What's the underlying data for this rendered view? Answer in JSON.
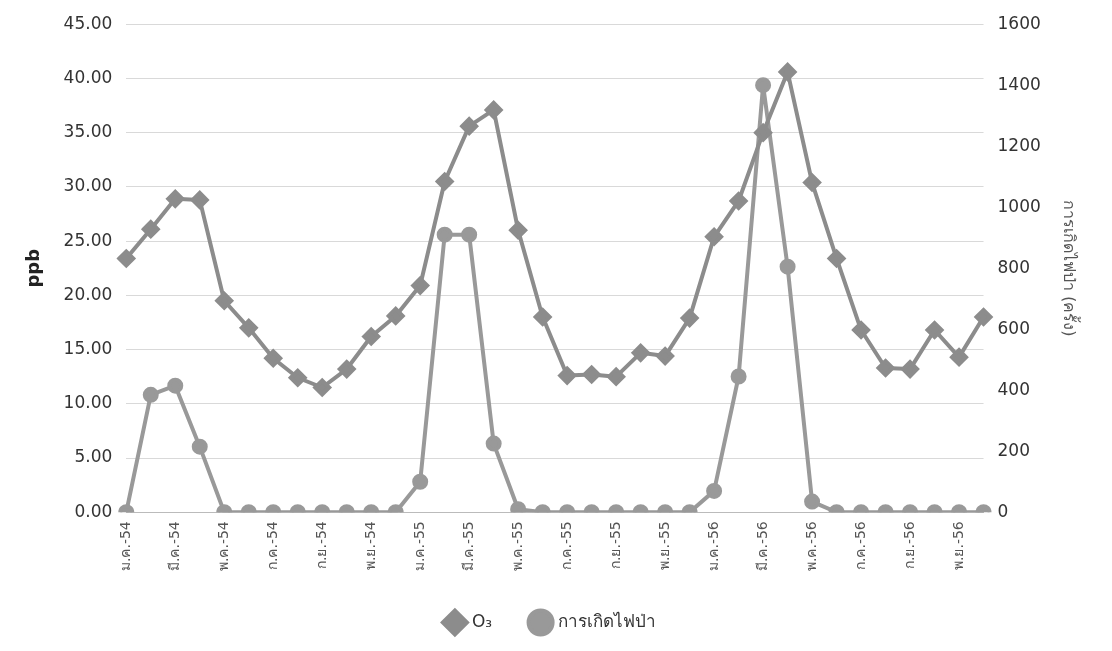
{
  "chart_data": {
    "type": "line",
    "ylabel": "ppb",
    "y2label": "การเกิดไฟป่า (ครั้ง)",
    "categories": [
      "ม.ค.-54",
      null,
      "มี.ค.-54",
      null,
      "พ.ค.-54",
      null,
      "ก.ค.-54",
      null,
      "ก.ย.-54",
      null,
      "พ.ย.-54",
      null,
      "ม.ค.-55",
      null,
      "มี.ค.-55",
      null,
      "พ.ค.-55",
      null,
      "ก.ค.-55",
      null,
      "ก.ย.-55",
      null,
      "พ.ย.-55",
      null,
      "ม.ค.-56",
      null,
      "มี.ค.-56",
      null,
      "พ.ค.-56",
      null,
      "ก.ค.-56",
      null,
      "ก.ย.-56",
      null,
      "พ.ย.-56",
      null
    ],
    "series": [
      {
        "name": "O₃",
        "color": "#8c8c8c",
        "marker": "diamond",
        "values": [
          23.4,
          26.1,
          28.9,
          28.8,
          19.5,
          17.0,
          14.2,
          12.4,
          11.5,
          13.2,
          16.2,
          18.1,
          20.9,
          30.5,
          35.6,
          37.1,
          26.0,
          18.0,
          12.6,
          12.7,
          12.5,
          14.7,
          14.4,
          17.9,
          25.4,
          28.7,
          35.0,
          40.6,
          30.4,
          23.4,
          16.8,
          13.3,
          13.2,
          16.8,
          14.3,
          18.0
        ]
      },
      {
        "name": "การเกิดไฟป่า",
        "color": "#999999",
        "marker": "circle",
        "axis": "y2",
        "values": [
          0,
          385,
          415,
          215,
          0,
          0,
          0,
          0,
          0,
          0,
          0,
          0,
          100,
          910,
          910,
          225,
          10,
          0,
          0,
          0,
          0,
          0,
          0,
          0,
          70,
          445,
          1400,
          805,
          35,
          0,
          0,
          0,
          0,
          0,
          0,
          0
        ]
      }
    ],
    "ylim": [
      0,
      45
    ],
    "yticks": [
      {
        "value": 0,
        "label": "0.00"
      },
      {
        "value": 5,
        "label": "5.00"
      },
      {
        "value": 10,
        "label": "10.00"
      },
      {
        "value": 15,
        "label": "15.00"
      },
      {
        "value": 20,
        "label": "20.00"
      },
      {
        "value": 25,
        "label": "25.00"
      },
      {
        "value": 30,
        "label": "30.00"
      },
      {
        "value": 35,
        "label": "35.00"
      },
      {
        "value": 40,
        "label": "40.00"
      },
      {
        "value": 45,
        "label": "45.00"
      }
    ],
    "y2lim": [
      0,
      1600
    ],
    "y2ticks": [
      0,
      200,
      400,
      600,
      800,
      1000,
      1200,
      1400,
      1600
    ],
    "grid": "y",
    "legend": "bottom",
    "line_style": "solid"
  }
}
